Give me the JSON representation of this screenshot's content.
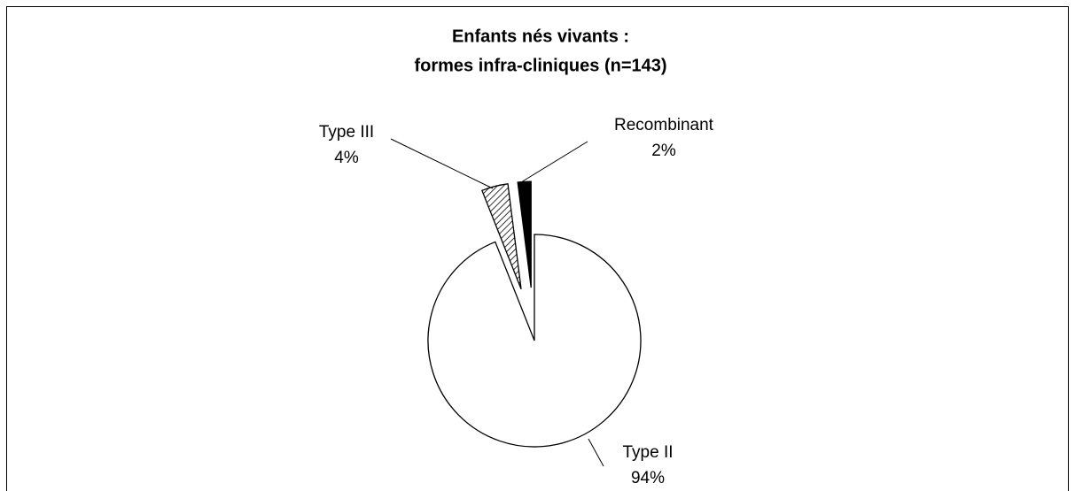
{
  "chart_data": {
    "type": "pie",
    "title": [
      "Enfants nés vivants :",
      "formes infra-cliniques (n=143)"
    ],
    "categories": [
      "Type II",
      "Type III",
      "Recombinant"
    ],
    "values": [
      94,
      4,
      2
    ],
    "value_labels": [
      "94%",
      "4%",
      "2%"
    ],
    "colors": [
      "#ffffff",
      "#ffffff",
      "#000000"
    ],
    "hatched": [
      false,
      true,
      false
    ]
  }
}
